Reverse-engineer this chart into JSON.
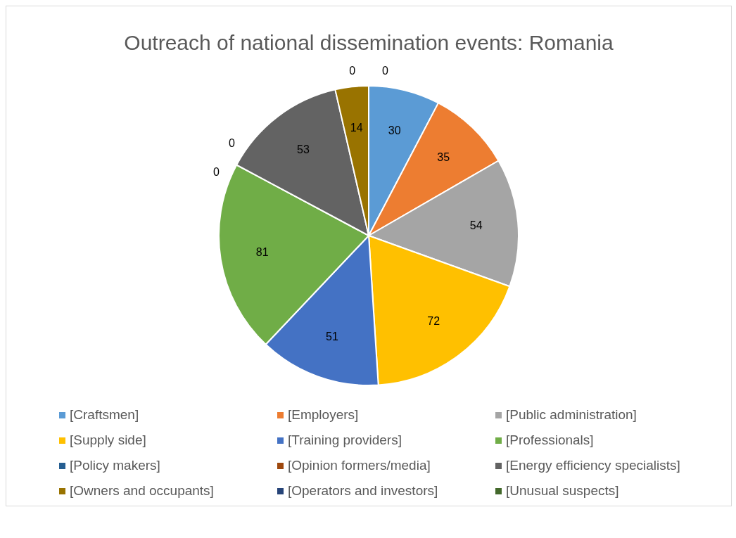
{
  "chart_data": {
    "type": "pie",
    "title": "Outreach of national dissemination events: Romania",
    "categories": [
      "[Craftsmen]",
      "[Employers]",
      "[Public administration]",
      "[Supply side]",
      "[Training providers]",
      "[Professionals]",
      "[Policy makers]",
      "[Opinion formers/media]",
      "[Energy efficiency specialists]",
      "[Owners and occupants]",
      "[Operators and investors]",
      "[Unusual suspects]"
    ],
    "values": [
      30,
      35,
      54,
      72,
      51,
      81,
      0,
      0,
      53,
      14,
      0,
      0
    ],
    "colors": [
      "#5b9bd5",
      "#ed7d31",
      "#a5a5a5",
      "#ffc000",
      "#4472c4",
      "#70ad47",
      "#255e91",
      "#9e480e",
      "#636363",
      "#997300",
      "#264478",
      "#43682b"
    ],
    "value_labels": [
      "30",
      "35",
      "54",
      "72",
      "51",
      "81",
      "0",
      "0",
      "53",
      "14",
      "0",
      "0"
    ],
    "legend": "bottom"
  }
}
